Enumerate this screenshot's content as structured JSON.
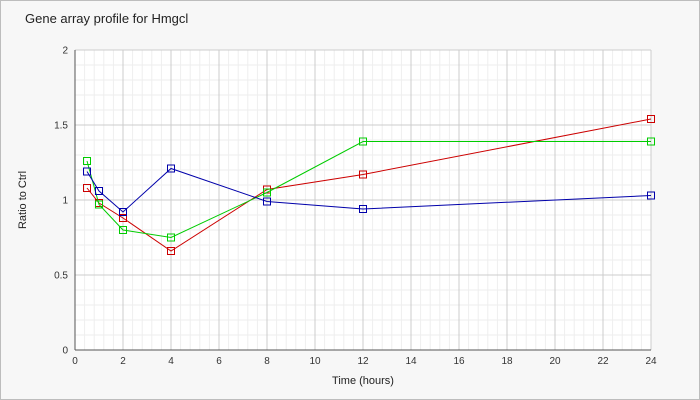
{
  "chart_data": {
    "type": "line",
    "title": "Gene array profile for Hmgcl",
    "xlabel": "Time (hours)",
    "ylabel": "Ratio to Ctrl",
    "xlim": [
      0,
      24
    ],
    "ylim": [
      0,
      2
    ],
    "xticks": [
      0,
      2,
      4,
      6,
      8,
      10,
      12,
      14,
      16,
      18,
      20,
      22,
      24
    ],
    "yticks": [
      0,
      0.5,
      1,
      1.5,
      2
    ],
    "xtick_labels": [
      "0",
      "2",
      "4",
      "6",
      "8",
      "10",
      "12",
      "14",
      "16",
      "18",
      "20",
      "22",
      "24"
    ],
    "ytick_labels": [
      "0",
      "0.5",
      "1",
      "1.5",
      "2"
    ],
    "grid": true,
    "legend": "none",
    "marker": "open-square",
    "series": [
      {
        "color": "#cc0000",
        "x": [
          0.5,
          1,
          2,
          4,
          8,
          12,
          24
        ],
        "y": [
          1.08,
          0.98,
          0.88,
          0.66,
          1.07,
          1.17,
          1.54
        ]
      },
      {
        "color": "#00cc00",
        "x": [
          0.5,
          1,
          2,
          4,
          8,
          12,
          24
        ],
        "y": [
          1.26,
          0.97,
          0.8,
          0.75,
          1.05,
          1.39,
          1.39
        ]
      },
      {
        "color": "#0000aa",
        "x": [
          0.5,
          1,
          2,
          4,
          8,
          12,
          24
        ],
        "y": [
          1.19,
          1.06,
          0.92,
          1.21,
          0.99,
          0.94,
          1.03
        ]
      }
    ]
  }
}
